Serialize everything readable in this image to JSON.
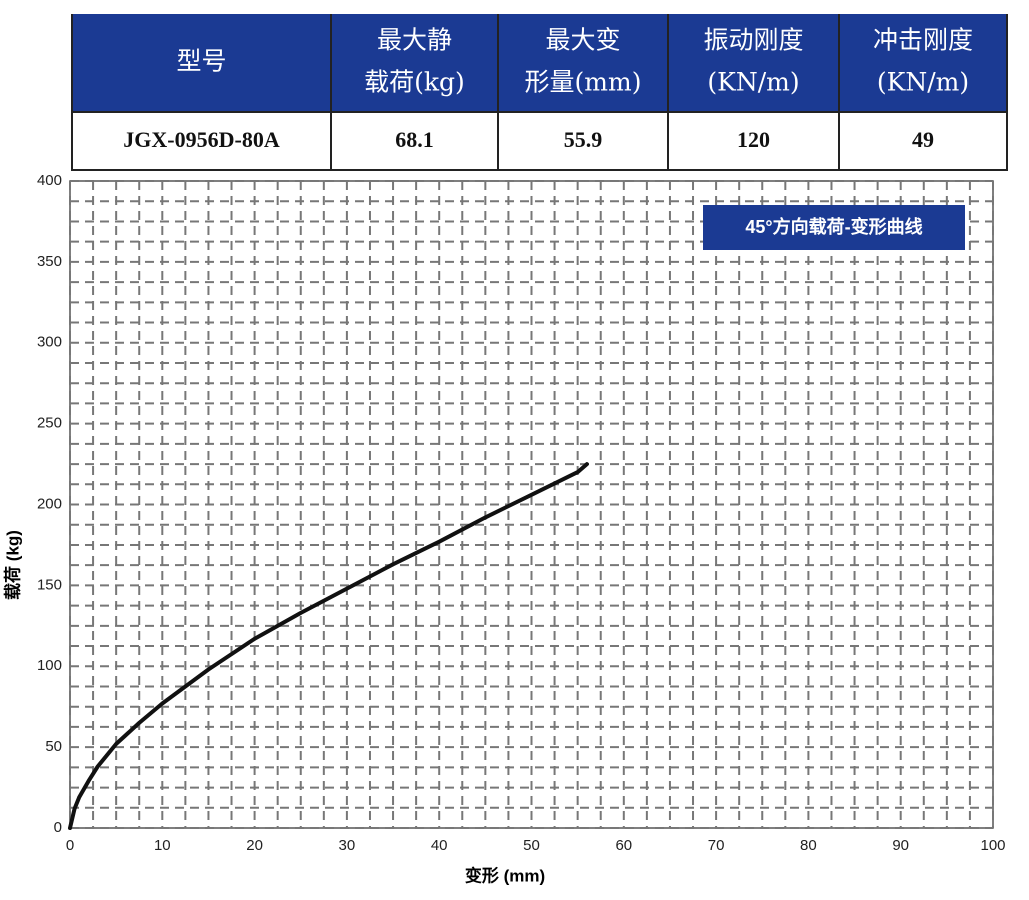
{
  "table": {
    "header": [
      [
        "型号"
      ],
      [
        "最大静",
        "载荷(kg)"
      ],
      [
        "最大变",
        "形量(mm)"
      ],
      [
        "振动刚度",
        "(KN/m)"
      ],
      [
        "冲击刚度",
        "(KN/m)"
      ]
    ],
    "rows": [
      [
        "JGX-0956D-80A",
        "68.1",
        "55.9",
        "120",
        "49"
      ]
    ]
  },
  "chart_data": {
    "type": "line",
    "title": "45°方向载荷-变形曲线",
    "x_label": "变形 (mm)",
    "y_label": "载荷 (kg)",
    "x": [
      0,
      0.5,
      1,
      2,
      3,
      5,
      7.5,
      10,
      15,
      20,
      25,
      30,
      35,
      40,
      45,
      50,
      55,
      56
    ],
    "values": [
      0,
      12,
      19,
      29,
      38,
      52,
      65,
      77,
      98,
      117,
      133,
      148,
      163,
      177,
      192,
      206,
      220,
      225
    ],
    "color": "#111111",
    "xlim": [
      0,
      100
    ],
    "xticks": [
      0,
      10,
      20,
      30,
      40,
      50,
      60,
      70,
      80,
      90,
      100
    ],
    "ylim": [
      0,
      400
    ],
    "yticks": [
      0,
      50,
      100,
      150,
      200,
      250,
      300,
      350,
      400
    ],
    "grid": true
  }
}
